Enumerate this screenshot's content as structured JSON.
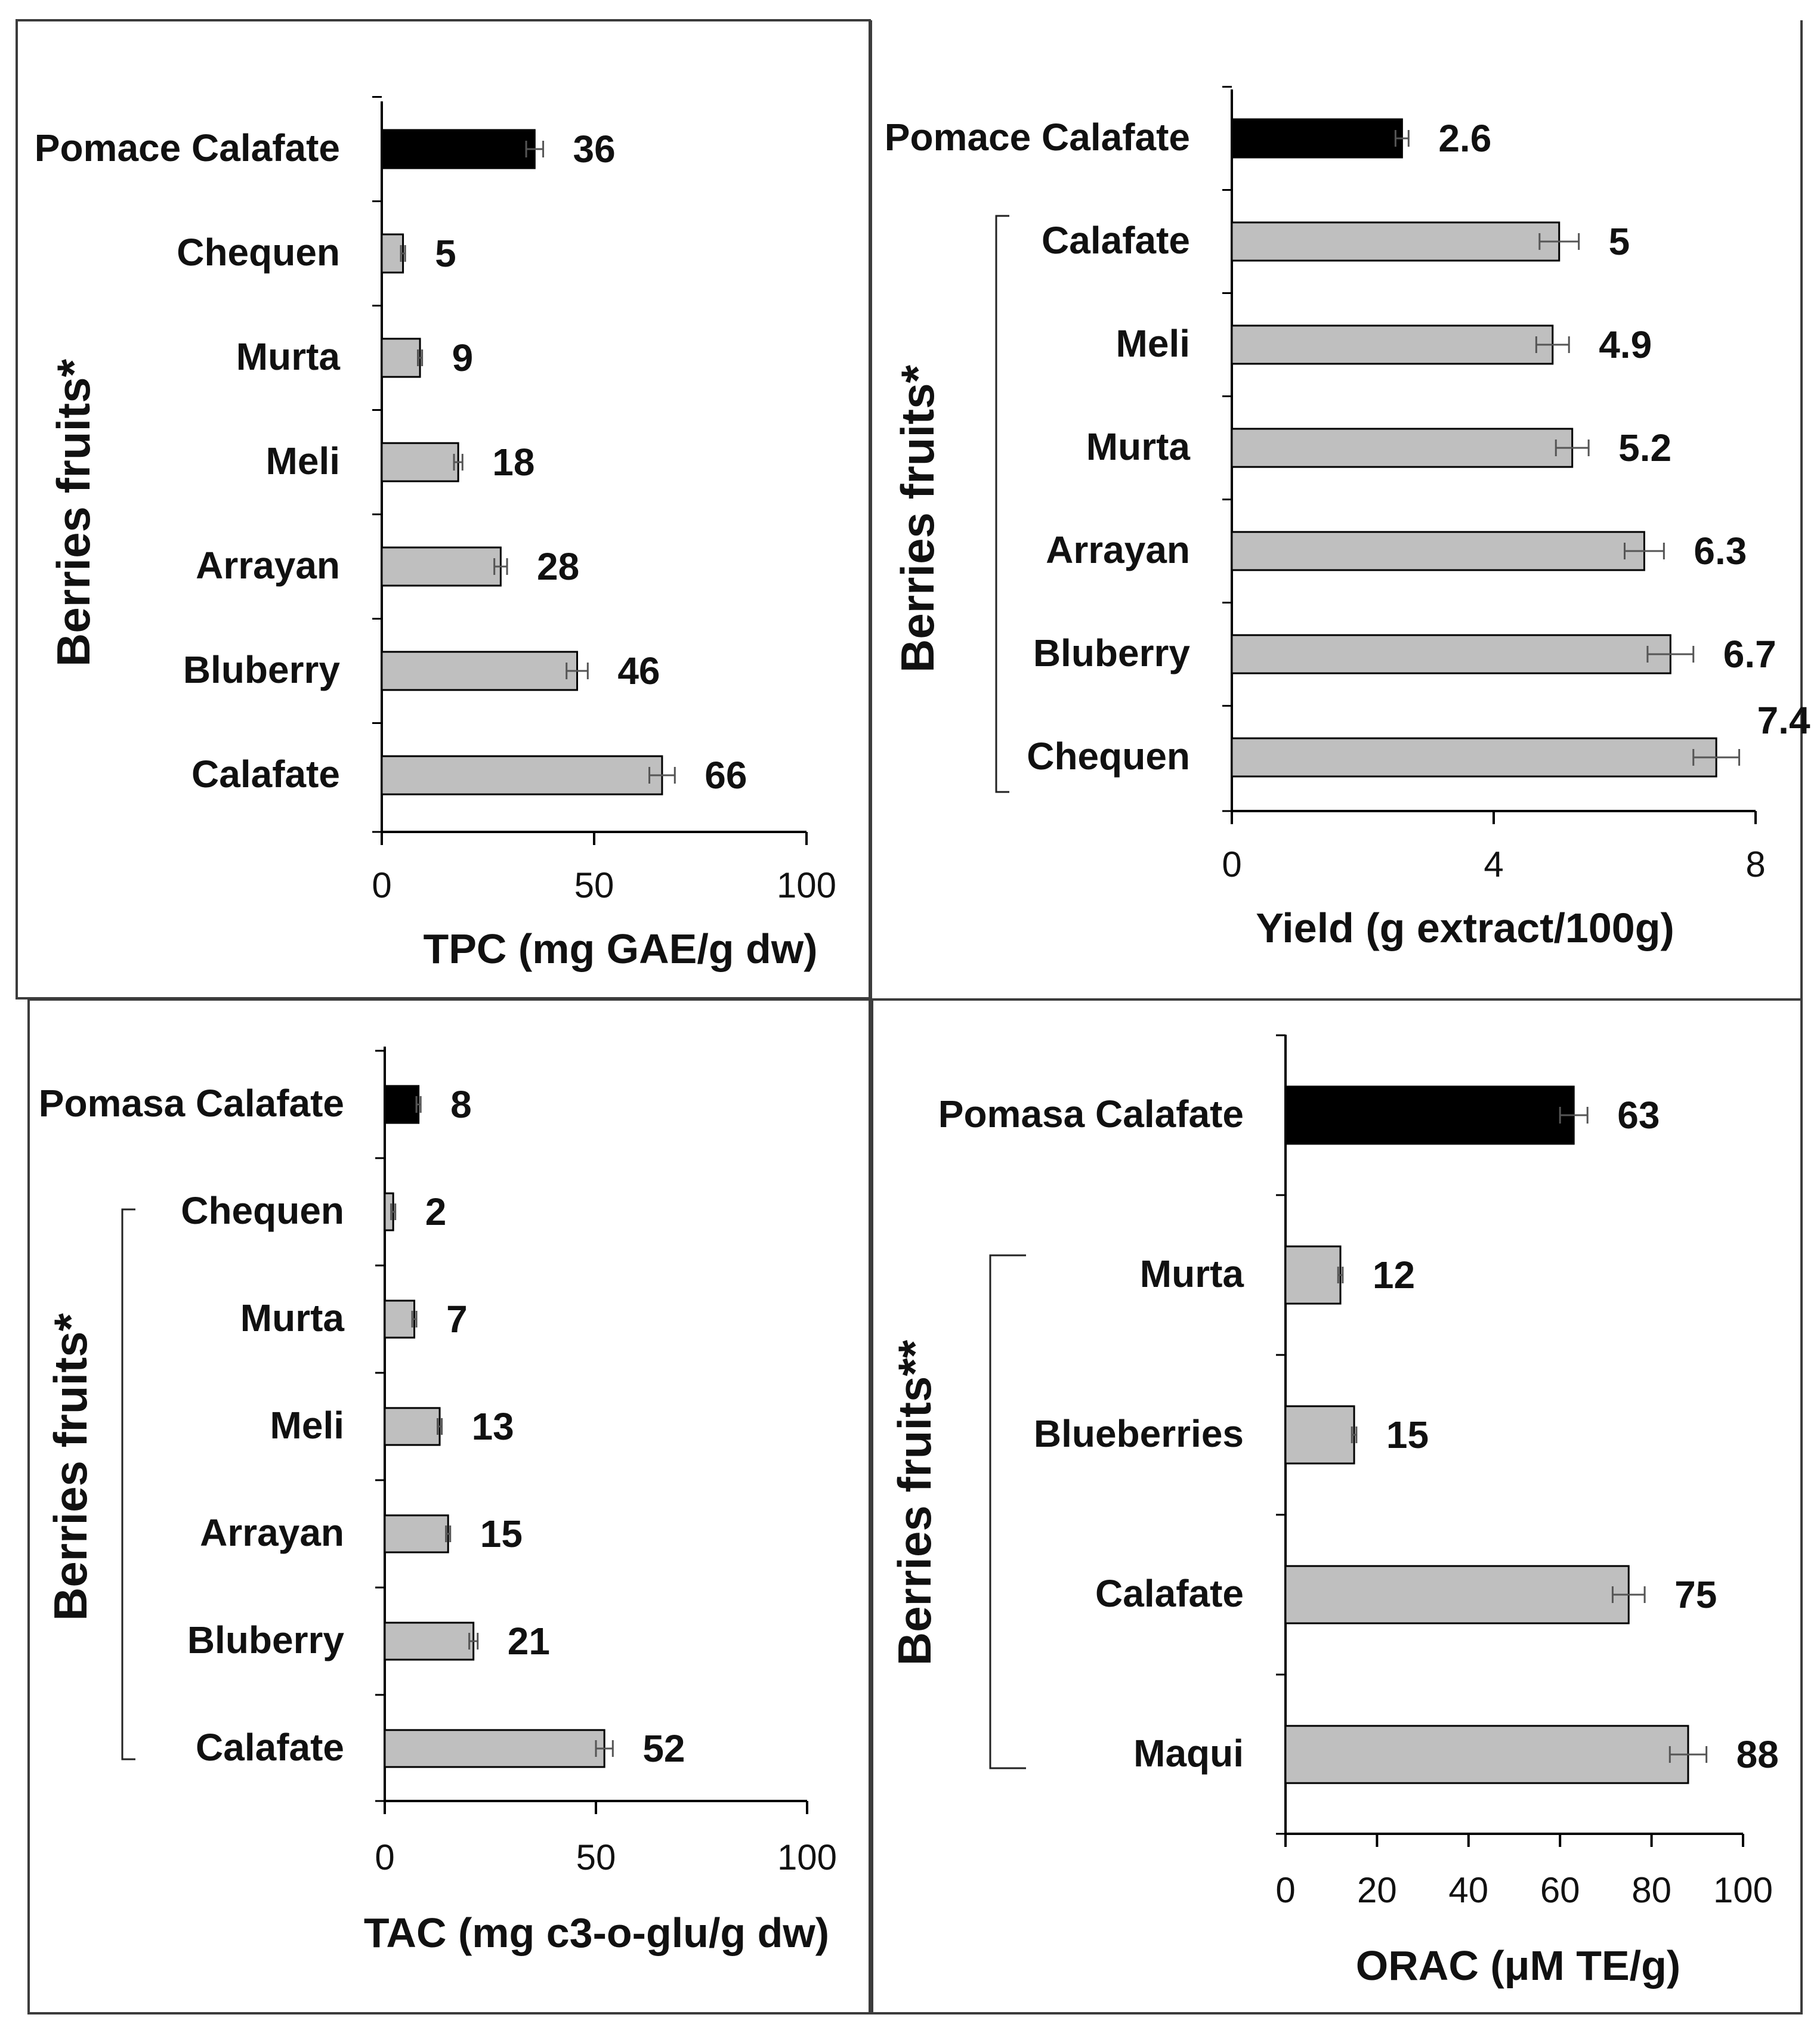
{
  "colors": {
    "highlight": "#000000",
    "bar": "#bfbfbf",
    "bar_edge": "#000000",
    "axis": "#000000",
    "error": "#555555",
    "frame": "#3c3c3c"
  },
  "chart_data": [
    {
      "type": "bar",
      "orientation": "horizontal",
      "categories": [
        "Pomace Calafate",
        "Chequen",
        "Murta",
        "Meli",
        "Arrayan",
        "Bluberry",
        "Calafate"
      ],
      "values": [
        36,
        5,
        9,
        18,
        28,
        46,
        66
      ],
      "labels": [
        "36",
        "5",
        "9",
        "18",
        "28",
        "46",
        "66"
      ],
      "error": [
        2,
        0.5,
        0.5,
        1,
        1.5,
        2.5,
        3
      ],
      "highlight": [
        true,
        false,
        false,
        false,
        false,
        false,
        false
      ],
      "xlim": [
        0,
        100
      ],
      "xticks": [
        0,
        50,
        100
      ],
      "xlabel": "TPC (mg GAE/g dw)",
      "ylabel": "Berries fruits*",
      "bracket": false
    },
    {
      "type": "bar",
      "orientation": "horizontal",
      "categories": [
        "Pomace Calafate",
        "Calafate",
        "Meli",
        "Murta",
        "Arrayan",
        "Bluberry",
        "Chequen"
      ],
      "values": [
        2.6,
        5,
        4.9,
        5.2,
        6.3,
        6.7,
        7.4
      ],
      "labels": [
        "2.6",
        "5",
        "4.9",
        "5.2",
        "6.3",
        "6.7",
        "7.4"
      ],
      "error": [
        0.1,
        0.3,
        0.25,
        0.25,
        0.3,
        0.35,
        0.35
      ],
      "highlight": [
        true,
        false,
        false,
        false,
        false,
        false,
        false
      ],
      "xlim": [
        0,
        8
      ],
      "xticks": [
        0,
        4,
        8
      ],
      "xlabel": "Yield (g extract/100g)",
      "ylabel": "Berries fruits*",
      "bracket": true
    },
    {
      "type": "bar",
      "orientation": "horizontal",
      "categories": [
        "Pomasa Calafate",
        "Chequen",
        "Murta",
        "Meli",
        "Arrayan",
        "Bluberry",
        "Calafate"
      ],
      "values": [
        8,
        2,
        7,
        13,
        15,
        21,
        52
      ],
      "labels": [
        "8",
        "2",
        "7",
        "13",
        "15",
        "21",
        "52"
      ],
      "error": [
        0.5,
        0.5,
        0.5,
        0.5,
        0.5,
        1,
        2
      ],
      "highlight": [
        true,
        false,
        false,
        false,
        false,
        false,
        false
      ],
      "xlim": [
        0,
        100
      ],
      "xticks": [
        0,
        50,
        100
      ],
      "xlabel": "TAC (mg c3-o-glu/g dw)",
      "ylabel": "Berries fruits*",
      "bracket": true
    },
    {
      "type": "bar",
      "orientation": "horizontal",
      "categories": [
        "Pomasa Calafate",
        "Murta",
        "Blueberries",
        "Calafate",
        "Maqui"
      ],
      "values": [
        63,
        12,
        15,
        75,
        88
      ],
      "labels": [
        "63",
        "12",
        "15",
        "75",
        "88"
      ],
      "error": [
        3,
        0.5,
        0.5,
        3.5,
        4
      ],
      "highlight": [
        true,
        false,
        false,
        false,
        false
      ],
      "xlim": [
        0,
        100
      ],
      "xticks": [
        0,
        20,
        40,
        60,
        80,
        100
      ],
      "xlabel": "ORAC (μM TE/g)",
      "ylabel": "Berries fruits**",
      "bracket": true
    }
  ]
}
